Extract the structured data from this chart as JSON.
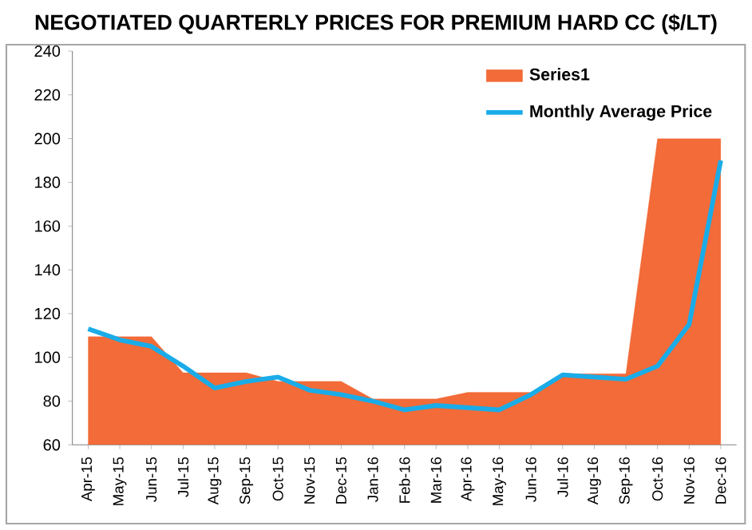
{
  "chart_data": {
    "type": "area",
    "title": "NEGOTIATED QUARTERLY PRICES FOR PREMIUM HARD CC ($/LT)",
    "categories": [
      "Apr-15",
      "May-15",
      "Jun-15",
      "Jul-15",
      "Aug-15",
      "Sep-15",
      "Oct-15",
      "Nov-15",
      "Dec-15",
      "Jan-16",
      "Feb-16",
      "Mar-16",
      "Apr-16",
      "May-16",
      "Jun-16",
      "Jul-16",
      "Aug-16",
      "Sep-16",
      "Oct-16",
      "Nov-16",
      "Dec-16"
    ],
    "series": [
      {
        "name": "Series1",
        "color": "#f26b38",
        "values": [
          109.5,
          109.5,
          109.5,
          93,
          93,
          93,
          89,
          89,
          89,
          81,
          81,
          81,
          84,
          84,
          84,
          92.5,
          92.5,
          92.5,
          200,
          200,
          200
        ]
      },
      {
        "name": "Monthly Average Price",
        "type": "line",
        "color": "#1aace8",
        "values": [
          113,
          108,
          105,
          96,
          86,
          89,
          91,
          85,
          83,
          80,
          76,
          78,
          77,
          76,
          83,
          92,
          91,
          90,
          96,
          115,
          190
        ]
      }
    ],
    "ylim": [
      60,
      240
    ],
    "yticks": [
      60,
      80,
      100,
      120,
      140,
      160,
      180,
      200,
      220,
      240
    ],
    "grid": false,
    "legend": "top right"
  }
}
